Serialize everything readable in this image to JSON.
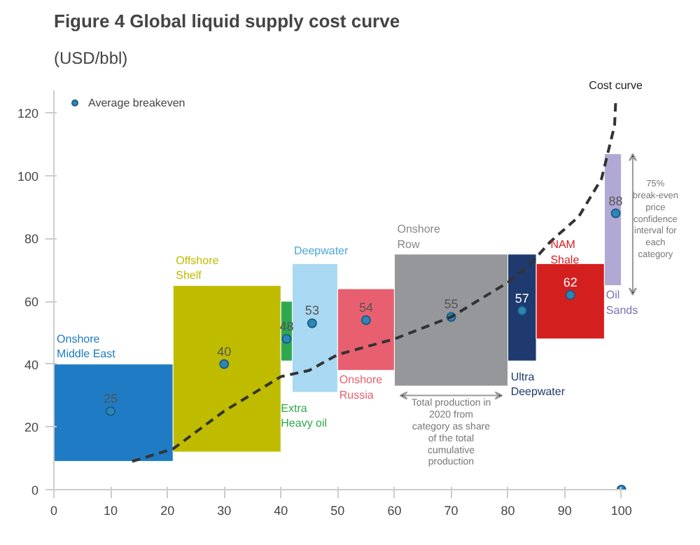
{
  "chart_data": {
    "type": "bar",
    "title": "Figure 4 Global liquid supply cost curve",
    "subtitle": "(USD/bbl)",
    "xlim": [
      0,
      100
    ],
    "xticks": [
      0,
      10,
      20,
      30,
      40,
      50,
      60,
      70,
      80,
      90,
      100
    ],
    "ylim": [
      0,
      127
    ],
    "yticks": [
      0,
      20,
      40,
      60,
      80,
      100,
      120
    ],
    "grid": false,
    "legend": "top left",
    "series": [
      {
        "x": [
          10.5,
          30.5,
          41,
          46,
          55,
          70,
          82.5,
          91,
          98.5
        ],
        "base": [
          9,
          12,
          41,
          31,
          38,
          33,
          41,
          48,
          65
        ],
        "values": [
          31,
          53,
          19,
          41,
          26,
          42,
          34,
          24,
          42
        ],
        "colors": [
          "#1f7bc4",
          "#bfbc00",
          "#2ea84f",
          "#a9d8f2",
          "#e8606f",
          "#95979a",
          "#1e3a6e",
          "#d41f1f",
          "#b1a9d4"
        ]
      },
      {
        "type": "scatter",
        "name": "Average breakeven",
        "color": "#2e86b8",
        "marker": "circle",
        "x": [
          10,
          30,
          41,
          45.5,
          55,
          70,
          82.5,
          91,
          99,
          100
        ],
        "values": [
          25,
          40,
          48,
          53,
          54,
          55,
          57,
          62,
          88,
          0
        ],
        "value_labels": [
          "25",
          "40",
          "48",
          "53",
          "54",
          "55",
          "57",
          "62",
          "88",
          null
        ]
      },
      {
        "type": "line",
        "name": "Cost curve",
        "color": "#333333",
        "line_style": "dashed",
        "x": [
          13.8,
          21,
          30,
          40,
          45,
          50,
          60,
          70,
          80,
          84,
          87.5,
          92.5,
          96.5,
          98.8,
          99
        ],
        "values": [
          9,
          13,
          25,
          36,
          38,
          43,
          48,
          55,
          66,
          72,
          79,
          87,
          99,
          116,
          124
        ]
      }
    ],
    "annotations": [
      "Onshore\nMiddle East",
      "Offshore\nShelf",
      "Extra\nHeavy oil",
      "Deepwater",
      "Onshore\nRussia",
      "Onshore\nRow",
      "Ultra\nDeepwater",
      "NAM\nShale",
      "Oil\nSands",
      "Total production in\n2020 from\ncategory as share\nof the total\ncumulative\nproduction",
      "75%\nbreak-even\nprice\nconfidence\ninterval for\neach\ncategory"
    ]
  }
}
